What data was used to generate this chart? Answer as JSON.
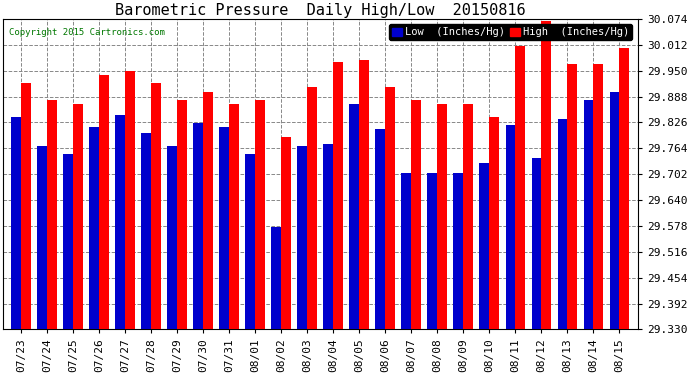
{
  "title": "Barometric Pressure  Daily High/Low  20150816",
  "copyright": "Copyright 2015 Cartronics.com",
  "legend_low": "Low  (Inches/Hg)",
  "legend_high": "High  (Inches/Hg)",
  "dates": [
    "07/23",
    "07/24",
    "07/25",
    "07/26",
    "07/27",
    "07/28",
    "07/29",
    "07/30",
    "07/31",
    "08/01",
    "08/02",
    "08/03",
    "08/04",
    "08/05",
    "08/06",
    "08/07",
    "08/08",
    "08/09",
    "08/10",
    "08/11",
    "08/12",
    "08/13",
    "08/14",
    "08/15"
  ],
  "high_values": [
    29.92,
    29.88,
    29.87,
    29.94,
    29.95,
    29.92,
    29.88,
    29.9,
    29.87,
    29.88,
    29.79,
    29.91,
    29.97,
    29.975,
    29.91,
    29.88,
    29.87,
    29.87,
    29.84,
    30.01,
    30.068,
    29.965,
    29.965,
    30.005
  ],
  "low_values": [
    29.84,
    29.77,
    29.75,
    29.815,
    29.845,
    29.8,
    29.77,
    29.825,
    29.815,
    29.75,
    29.575,
    29.77,
    29.775,
    29.87,
    29.81,
    29.705,
    29.705,
    29.705,
    29.73,
    29.82,
    29.74,
    29.835,
    29.88,
    29.9
  ],
  "ylim_min": 29.33,
  "ylim_max": 30.074,
  "yticks": [
    29.33,
    29.392,
    29.454,
    29.516,
    29.578,
    29.64,
    29.702,
    29.764,
    29.826,
    29.888,
    29.95,
    30.012,
    30.074
  ],
  "bar_width": 0.38,
  "low_color": "#0000cc",
  "high_color": "#ff0000",
  "bg_color": "#ffffff",
  "grid_color": "#888888",
  "title_fontsize": 11,
  "tick_fontsize": 8,
  "legend_fontsize": 7.5
}
